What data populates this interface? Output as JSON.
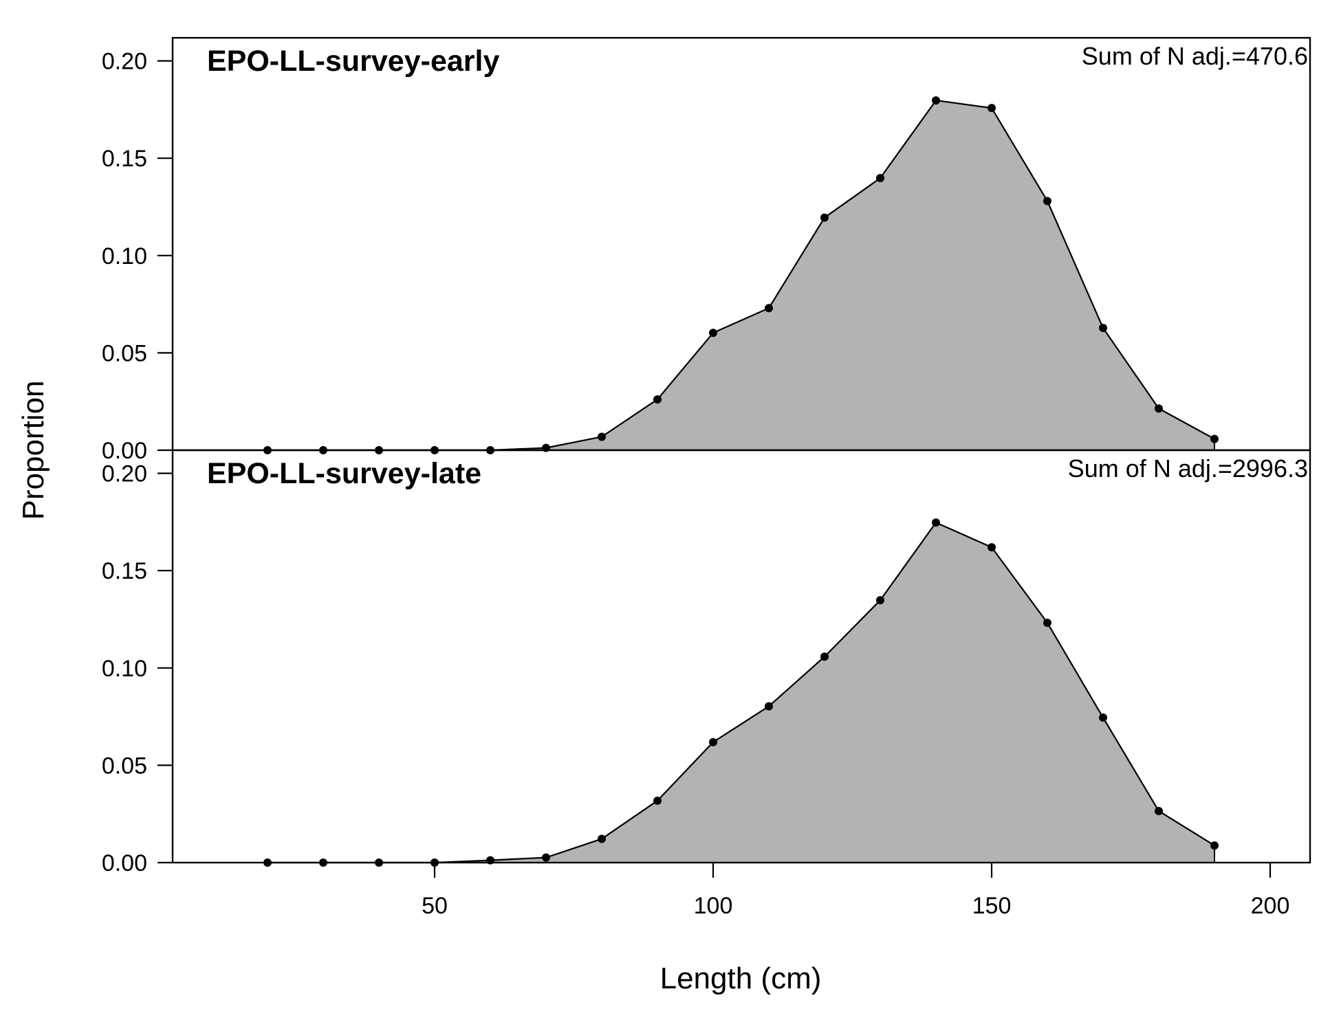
{
  "chart_data": {
    "type": "area",
    "xlabel": "Length (cm)",
    "ylabel": "Proportion",
    "xlim": [
      0,
      207
    ],
    "ylim": [
      0,
      0.21
    ],
    "x_ticks": [
      50,
      100,
      150,
      200
    ],
    "y_ticks": [
      0.0,
      0.05,
      0.1,
      0.15,
      0.2
    ],
    "x_tick_labels": [
      "50",
      "100",
      "150",
      "200"
    ],
    "y_tick_labels": [
      "0.00",
      "0.05",
      "0.10",
      "0.15",
      "0.20"
    ],
    "grid": false,
    "fill_color": "#b3b3b3",
    "line_color": "#000000",
    "panels": [
      {
        "title": "EPO-LL-survey-early",
        "annotation": "Sum of N adj.=470.6",
        "x": [
          20,
          30,
          40,
          50,
          60,
          70,
          80,
          90,
          100,
          110,
          120,
          130,
          140,
          150,
          160,
          170,
          180,
          190
        ],
        "values": [
          0.0,
          0.0,
          0.0,
          0.0,
          0.0,
          0.0012,
          0.0069,
          0.0261,
          0.0603,
          0.073,
          0.1195,
          0.1398,
          0.1797,
          0.1758,
          0.128,
          0.0628,
          0.0214,
          0.0058
        ]
      },
      {
        "title": "EPO-LL-survey-late",
        "annotation": "Sum of N adj.=2996.3",
        "x": [
          20,
          30,
          40,
          50,
          60,
          70,
          80,
          90,
          100,
          110,
          120,
          130,
          140,
          150,
          160,
          170,
          180,
          190
        ],
        "values": [
          0.0,
          0.0,
          0.0,
          0.0,
          0.0012,
          0.0026,
          0.0122,
          0.0318,
          0.0619,
          0.0803,
          0.1058,
          0.1348,
          0.1747,
          0.162,
          0.1232,
          0.0745,
          0.0265,
          0.0088
        ]
      }
    ]
  }
}
